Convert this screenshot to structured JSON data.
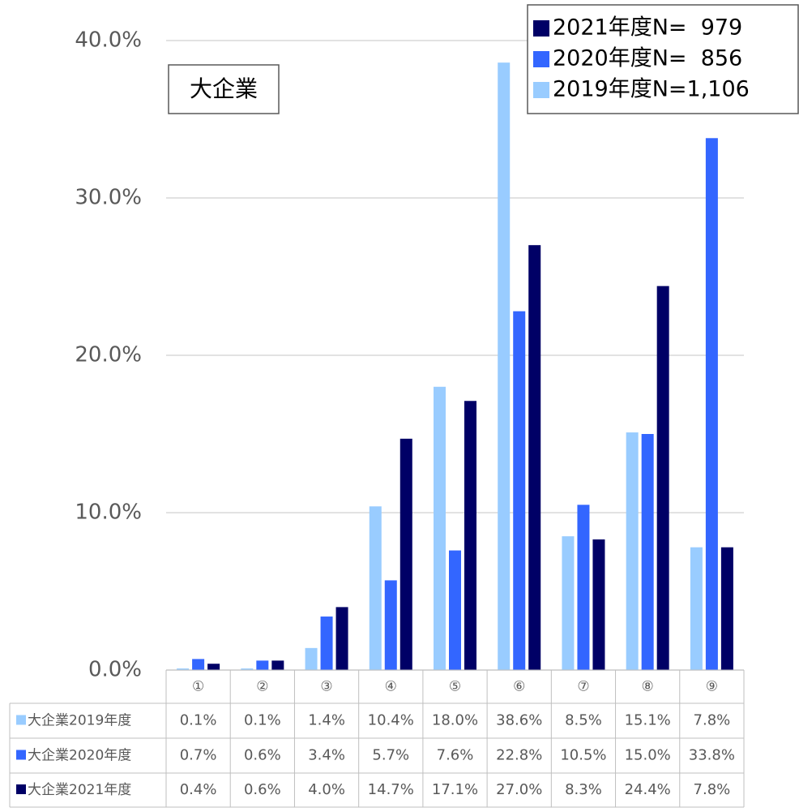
{
  "chart_data": {
    "type": "bar",
    "annotation": "大企業",
    "categories": [
      "①",
      "②",
      "③",
      "④",
      "⑤",
      "⑥",
      "⑦",
      "⑧",
      "⑨"
    ],
    "series": [
      {
        "name": "2019年度N=1,106",
        "row_label": "大企業2019年度",
        "color": "#99ccff",
        "values": [
          0.1,
          0.1,
          1.4,
          10.4,
          18.0,
          38.6,
          8.5,
          15.1,
          7.8
        ],
        "value_labels": [
          "0.1%",
          "0.1%",
          "1.4%",
          "10.4%",
          "18.0%",
          "38.6%",
          "8.5%",
          "15.1%",
          "7.8%"
        ]
      },
      {
        "name": "2020年度N=  856",
        "row_label": "大企業2020年度",
        "color": "#3366ff",
        "values": [
          0.7,
          0.6,
          3.4,
          5.7,
          7.6,
          22.8,
          10.5,
          15.0,
          33.8
        ],
        "value_labels": [
          "0.7%",
          "0.6%",
          "3.4%",
          "5.7%",
          "7.6%",
          "22.8%",
          "10.5%",
          "15.0%",
          "33.8%"
        ]
      },
      {
        "name": "2021年度N=  979",
        "row_label": "大企業2021年度",
        "color": "#000066",
        "values": [
          0.4,
          0.6,
          4.0,
          14.7,
          17.1,
          27.0,
          8.3,
          24.4,
          7.8
        ],
        "value_labels": [
          "0.4%",
          "0.6%",
          "4.0%",
          "14.7%",
          "17.1%",
          "27.0%",
          "8.3%",
          "24.4%",
          "7.8%"
        ]
      }
    ],
    "ylim": [
      0,
      40
    ],
    "yticks": [
      {
        "value": 0,
        "label": "0.0%"
      },
      {
        "value": 10,
        "label": "10.0%"
      },
      {
        "value": 20,
        "label": "20.0%"
      },
      {
        "value": 30,
        "label": "30.0%"
      },
      {
        "value": 40,
        "label": "40.0%"
      }
    ],
    "grid": true,
    "legend": "top-right"
  }
}
